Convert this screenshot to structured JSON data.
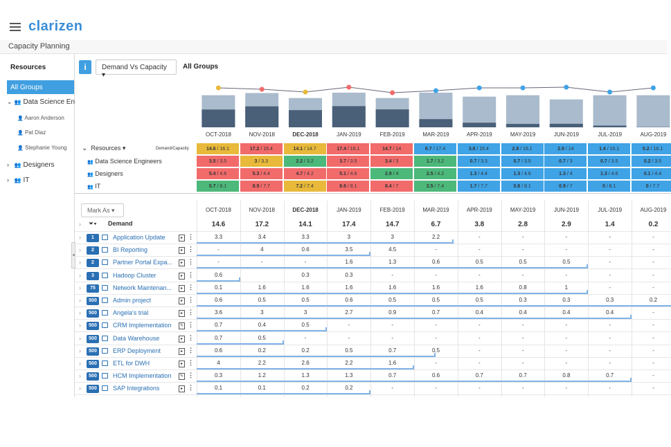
{
  "app": {
    "logo": "clarizen",
    "page_title": "Capacity Planning"
  },
  "sidebar": {
    "header": "Resources",
    "all_groups": "All Groups",
    "items": [
      {
        "label": "Data Science Eng",
        "type": "group"
      },
      {
        "label": "Aaron Anderson",
        "type": "user"
      },
      {
        "label": "Pat Diaz",
        "type": "user"
      },
      {
        "label": "Stephanie Young",
        "type": "user"
      },
      {
        "label": "Designers",
        "type": "group"
      },
      {
        "label": "IT",
        "type": "group"
      }
    ]
  },
  "toolbar": {
    "info": "i",
    "view_dropdown": "Demand Vs Capacity ▾",
    "group_label": "All Groups"
  },
  "months": [
    "OCT-2018",
    "NOV-2018",
    "DEC-2018",
    "JAN-2019",
    "FEB-2019",
    "MAR-2019",
    "APR-2019",
    "MAY-2019",
    "JUN-2019",
    "JUL-2019",
    "AUG-2019"
  ],
  "current_month_index": 2,
  "chart_data": {
    "type": "bar",
    "categories": [
      "OCT-2018",
      "NOV-2018",
      "DEC-2018",
      "JAN-2019",
      "FEB-2019",
      "MAR-2019",
      "APR-2019",
      "MAY-2019",
      "JUN-2019",
      "JUL-2019",
      "AUG-2019"
    ],
    "series": [
      {
        "name": "Demand",
        "values": [
          14.6,
          17.2,
          14.1,
          17.4,
          14.7,
          6.7,
          3.8,
          2.8,
          2.9,
          1.4,
          0.2
        ]
      },
      {
        "name": "Capacity",
        "values": [
          16.1,
          15.4,
          14.7,
          16.1,
          14,
          17.4,
          15.4,
          16.1,
          14,
          16.1,
          16.1
        ]
      }
    ],
    "ylim": [
      0,
      20
    ]
  },
  "capacity": {
    "header_label": "Resources ▾",
    "header_dc": "Demand/Capacity",
    "rows": [
      {
        "label": "Data Science Engineers",
        "cells": [
          "3.5 / 3.5",
          "3 / 3.3",
          "2.2 / 3.2",
          "3.7 / 3.5",
          "3.4 / 3",
          "1.7 / 3.2",
          "0.7 / 3.3",
          "0.7 / 3.5",
          "0.7 / 3",
          "0.7 / 3.5",
          "0.2 / 3.5"
        ],
        "colors": [
          "r",
          "y",
          "g",
          "r",
          "r",
          "g",
          "b",
          "b",
          "b",
          "b",
          "b"
        ]
      },
      {
        "label": "Designers",
        "cells": [
          "5.4 / 4.6",
          "5.3 / 4.4",
          "4.7 / 4.2",
          "5.1 / 4.6",
          "2.9 / 4",
          "2.5 / 4.2",
          "1.3 / 4.4",
          "1.3 / 4.6",
          "1.3 / 4",
          "1.3 / 4.6",
          "0.1 / 4.4"
        ],
        "colors": [
          "r",
          "r",
          "r",
          "r",
          "g",
          "g",
          "b",
          "b",
          "b",
          "b",
          "b"
        ]
      },
      {
        "label": "IT",
        "cells": [
          "5.7 / 8.1",
          "8.9 / 7.7",
          "7.2 / 7.4",
          "8.6 / 8.1",
          "8.4 / 7",
          "2.5 / 7.4",
          "1.7 / 7.7",
          "0.8 / 8.1",
          "0.9 / 7",
          "0 / 8.1",
          "0 / 7.7"
        ],
        "colors": [
          "g",
          "r",
          "y",
          "r",
          "r",
          "g",
          "b",
          "b",
          "b",
          "b",
          "b"
        ]
      }
    ],
    "totals": [
      "14.6 / 16.1",
      "17.2 / 15.4",
      "14.1 / 14.7",
      "17.4 / 16.1",
      "14.7 / 14",
      "6.7 / 17.4",
      "3.8 / 15.4",
      "2.8 / 16.1",
      "2.9 / 14",
      "1.4 / 16.1",
      "0.2 / 16.1"
    ],
    "total_colors": [
      "y",
      "r",
      "y",
      "r",
      "r",
      "b",
      "b",
      "b",
      "b",
      "b",
      "b"
    ]
  },
  "grid": {
    "mark_as": "Mark As ▾",
    "demand_label": "Demand",
    "demand": [
      "14.6",
      "17.2",
      "14.1",
      "17.4",
      "14.7",
      "6.7",
      "3.8",
      "2.8",
      "2.9",
      "1.4",
      "0.2"
    ],
    "projects": [
      {
        "badge": "1",
        "name": "Application Update",
        "values": [
          "3.3",
          "3.4",
          "3.3",
          "3",
          "3",
          "2.2",
          "-",
          "-",
          "-",
          "-",
          "-"
        ],
        "end": 5.9
      },
      {
        "badge": "2",
        "name": "BI Reporting",
        "values": [
          "-",
          "4",
          "0.6",
          "3.5",
          "4.5",
          "-",
          "-",
          "-",
          "-",
          "-",
          "-"
        ],
        "end": 4.0
      },
      {
        "badge": "2",
        "name": "Partner Portal Expa...",
        "values": [
          "-",
          "-",
          "-",
          "1.6",
          "1.3",
          "0.6",
          "0.5",
          "0.5",
          "0.5",
          "-",
          "-"
        ],
        "end": 9.0
      },
      {
        "badge": "3",
        "name": "Hadoop Cluster",
        "values": [
          "0.6",
          "",
          "0.3",
          "0.3",
          "-",
          "-",
          "-",
          "-",
          "-",
          "-",
          "-"
        ],
        "end": 1.0
      },
      {
        "badge": "75",
        "name": "Network Maintenan...",
        "values": [
          "0.1",
          "1.6",
          "1.6",
          "1.6",
          "1.6",
          "1.6",
          "1.6",
          "0.8",
          "1",
          "-",
          "-"
        ],
        "end": 9.0
      },
      {
        "badge": "500",
        "name": "Admin project",
        "values": [
          "0.6",
          "0.5",
          "0.5",
          "0.6",
          "0.5",
          "0.5",
          "0.5",
          "0.3",
          "0.3",
          "0.3",
          "0.2"
        ],
        "end": 11.0
      },
      {
        "badge": "500",
        "name": "Angela's trial",
        "values": [
          "3.6",
          "3",
          "3",
          "2.7",
          "0.9",
          "0.7",
          "0.4",
          "0.4",
          "0.4",
          "0.4",
          "-"
        ],
        "end": 10.0
      },
      {
        "badge": "500",
        "name": "CRM Implementation",
        "values": [
          "0.7",
          "0.4",
          "0.5",
          "-",
          "-",
          "-",
          "-",
          "-",
          "-",
          "-",
          "-"
        ],
        "end": 3.0
      },
      {
        "badge": "500",
        "name": "Data Warehouse",
        "values": [
          "0.7",
          "0.5",
          "-",
          "-",
          "-",
          "-",
          "-",
          "-",
          "-",
          "-",
          "-"
        ],
        "end": 2.0
      },
      {
        "badge": "500",
        "name": "ERP Deployment",
        "values": [
          "0.6",
          "0.2",
          "0.2",
          "0.5",
          "0.7",
          "0.5",
          "-",
          "-",
          "-",
          "-",
          "-"
        ],
        "end": 5.5
      },
      {
        "badge": "500",
        "name": "ETL for DWH",
        "values": [
          "4",
          "2.2",
          "2.6",
          "2.2",
          "1.6",
          "-",
          "-",
          "-",
          "-",
          "-",
          "-"
        ],
        "end": 5.0
      },
      {
        "badge": "500",
        "name": "HCM Implementation",
        "values": [
          "0.3",
          "1.2",
          "1.3",
          "1.3",
          "0.7",
          "0.6",
          "0.7",
          "0.7",
          "0.8",
          "0.7",
          "-"
        ],
        "end": 10.0
      },
      {
        "badge": "500",
        "name": "SAP Integrations",
        "values": [
          "0.1",
          "0.1",
          "0.2",
          "0.2",
          "-",
          "-",
          "-",
          "-",
          "-",
          "-",
          "-"
        ],
        "end": 4.0
      }
    ]
  },
  "colors": {
    "r": "#f26b6b",
    "y": "#e8b93a",
    "g": "#4cb87a",
    "b": "#3fa3e6",
    "accent": "#3f9fe0"
  }
}
